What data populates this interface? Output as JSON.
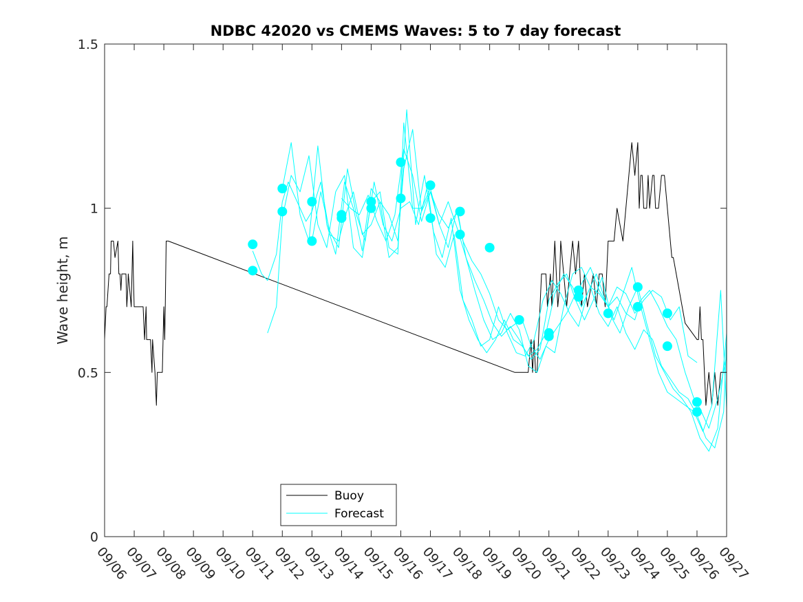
{
  "chart_data": {
    "type": "line",
    "title": "NDBC 42020 vs CMEMS Waves: 5 to 7 day forecast",
    "xlabel": "",
    "ylabel": "Wave height, m",
    "ylim": [
      0,
      1.5
    ],
    "yticks": [
      0,
      0.5,
      1,
      1.5
    ],
    "ytick_labels": [
      "0",
      "0.5",
      "1",
      "1.5"
    ],
    "xlim": [
      0,
      21
    ],
    "xtick_labels": [
      "09/06",
      "09/07",
      "09/08",
      "09/09",
      "09/10",
      "09/11",
      "09/12",
      "09/13",
      "09/14",
      "09/15",
      "09/16",
      "09/17",
      "09/18",
      "09/19",
      "09/20",
      "09/21",
      "09/22",
      "09/23",
      "09/24",
      "09/25",
      "09/26",
      "09/27"
    ],
    "colors": {
      "buoy": "#000000",
      "forecast": "#00ffff"
    },
    "legend": {
      "position": "bottom-center",
      "entries": [
        "Buoy",
        "Forecast"
      ]
    },
    "series": [
      {
        "name": "Buoy",
        "x": [
          0,
          0.05,
          0.08,
          0.15,
          0.2,
          0.22,
          0.3,
          0.35,
          0.45,
          0.48,
          0.5,
          0.52,
          0.55,
          0.58,
          0.65,
          0.72,
          0.75,
          0.78,
          0.8,
          0.9,
          0.95,
          0.97,
          1.0,
          1.02,
          1.1,
          1.15,
          1.2,
          1.3,
          1.35,
          1.4,
          1.42,
          1.45,
          1.55,
          1.6,
          1.62,
          1.7,
          1.75,
          1.78,
          1.8,
          1.85,
          1.9,
          1.95,
          2.0,
          2.03,
          2.05,
          2.08,
          2.1,
          2.15,
          13.85,
          14.3,
          14.35,
          14.4,
          14.45,
          14.5,
          14.55,
          14.6,
          14.7,
          14.75,
          14.85,
          14.9,
          14.95,
          15.05,
          15.1,
          15.2,
          15.25,
          15.3,
          15.35,
          15.4,
          15.5,
          15.6,
          15.7,
          15.8,
          15.9,
          16.0,
          16.1,
          16.2,
          16.3,
          16.4,
          16.5,
          16.6,
          16.7,
          16.8,
          16.9,
          17.0,
          17.1,
          17.15,
          17.2,
          17.3,
          17.5,
          17.7,
          17.8,
          17.9,
          18.0,
          18.05,
          18.1,
          18.15,
          18.2,
          18.3,
          18.35,
          18.4,
          18.5,
          18.55,
          18.6,
          18.7,
          18.8,
          18.9,
          19.1,
          19.15,
          19.2,
          19.3,
          19.4,
          19.5,
          19.6,
          20.0,
          20.05,
          20.1,
          20.15,
          20.2,
          20.3,
          20.4,
          20.5,
          20.6,
          20.7,
          20.8,
          20.9,
          21.0
        ],
        "y": [
          0.6,
          0.7,
          0.7,
          0.8,
          0.8,
          0.9,
          0.9,
          0.85,
          0.9,
          0.8,
          0.8,
          0.8,
          0.75,
          0.8,
          0.8,
          0.8,
          0.7,
          0.75,
          0.8,
          0.7,
          0.9,
          0.8,
          0.7,
          0.7,
          0.7,
          0.7,
          0.7,
          0.7,
          0.6,
          0.7,
          0.6,
          0.6,
          0.6,
          0.5,
          0.6,
          0.5,
          0.4,
          0.5,
          0.5,
          0.5,
          0.5,
          0.5,
          0.7,
          0.6,
          0.7,
          0.9,
          0.9,
          0.9,
          0.5,
          0.5,
          0.55,
          0.6,
          0.5,
          0.6,
          0.5,
          0.5,
          0.7,
          0.8,
          0.8,
          0.8,
          0.7,
          0.8,
          0.7,
          0.9,
          0.8,
          0.7,
          0.75,
          0.9,
          0.8,
          0.7,
          0.8,
          0.9,
          0.8,
          0.9,
          0.7,
          0.8,
          0.7,
          0.75,
          0.8,
          0.7,
          0.8,
          0.8,
          0.7,
          0.9,
          0.9,
          0.9,
          0.9,
          1.0,
          0.9,
          1.1,
          1.2,
          1.1,
          1.2,
          1.0,
          1.1,
          1.1,
          1.0,
          1.0,
          1.1,
          1.0,
          1.1,
          1.1,
          1.0,
          1.0,
          1.1,
          1.1,
          0.9,
          0.85,
          0.85,
          0.8,
          0.75,
          0.7,
          0.65,
          0.6,
          0.6,
          0.7,
          0.6,
          0.6,
          0.4,
          0.5,
          0.4,
          0.5,
          0.4,
          0.5,
          0.5,
          0.5
        ]
      },
      {
        "name": "Forecast",
        "x": [
          5.0,
          5.3,
          5.5,
          5.8,
          6.0,
          6.2,
          6.5,
          6.8,
          7.0,
          7.3,
          7.6,
          7.9,
          8.1,
          8.4,
          8.7,
          9.0,
          9.3,
          9.6,
          9.9,
          10.1,
          10.4,
          10.7,
          11.0,
          11.3,
          11.6,
          11.9,
          12.1,
          12.4,
          12.7,
          13.0,
          13.3,
          13.6,
          13.9,
          14.1,
          14.4,
          14.7,
          15.0,
          15.3,
          15.6,
          15.9,
          16.1,
          16.4,
          16.7,
          17.0,
          17.3,
          17.6,
          17.9,
          18.1,
          18.4,
          18.7,
          19.0,
          19.3,
          19.6,
          19.9,
          20.1,
          20.4,
          20.7,
          21.0
        ],
        "y": [
          0.87,
          0.8,
          0.78,
          0.86,
          1.02,
          1.08,
          1.02,
          0.96,
          0.99,
          1.08,
          0.92,
          0.9,
          0.97,
          1.05,
          0.92,
          0.95,
          1.02,
          0.98,
          0.9,
          1.12,
          1.24,
          0.99,
          1.05,
          0.98,
          0.94,
          0.99,
          0.9,
          0.84,
          0.8,
          0.74,
          0.66,
          0.63,
          0.65,
          0.66,
          0.58,
          0.54,
          0.6,
          0.64,
          0.68,
          0.74,
          0.77,
          0.82,
          0.75,
          0.7,
          0.73,
          0.68,
          0.66,
          0.72,
          0.75,
          0.7,
          0.64,
          0.6,
          0.5,
          0.42,
          0.39,
          0.33,
          0.42,
          0.55
        ]
      },
      {
        "name": "Forecast",
        "x": [
          5.5,
          5.8,
          6.0,
          6.3,
          6.6,
          6.9,
          7.2,
          7.5,
          7.8,
          8.1,
          8.4,
          8.7,
          9.0,
          9.3,
          9.6,
          9.9,
          10.1,
          10.4,
          10.7,
          11.0,
          11.3,
          11.6,
          11.9,
          12.2,
          12.5,
          12.8,
          13.1,
          13.4,
          13.7,
          14.0,
          14.3,
          14.6,
          14.9,
          15.2,
          15.5,
          15.8,
          16.1,
          16.4,
          16.7,
          17.0,
          17.3,
          17.6,
          17.9,
          18.2,
          18.5,
          18.8,
          19.1,
          19.4,
          19.7,
          20.0,
          20.3,
          20.6,
          20.9,
          21.0
        ],
        "y": [
          0.62,
          0.7,
          0.97,
          1.1,
          1.05,
          1.16,
          0.95,
          0.88,
          1.05,
          1.1,
          0.88,
          0.85,
          1.02,
          1.05,
          0.88,
          0.86,
          1.26,
          1.0,
          1.0,
          1.06,
          0.95,
          0.88,
          1.0,
          0.85,
          0.75,
          0.66,
          0.6,
          0.62,
          0.68,
          0.63,
          0.52,
          0.5,
          0.58,
          0.56,
          0.7,
          0.8,
          0.82,
          0.76,
          0.68,
          0.64,
          0.7,
          0.62,
          0.57,
          0.63,
          0.6,
          0.52,
          0.48,
          0.44,
          0.42,
          0.37,
          0.3,
          0.27,
          0.38,
          0.6
        ]
      },
      {
        "name": "Forecast",
        "x": [
          6.0,
          6.3,
          6.6,
          6.9,
          7.2,
          7.5,
          7.8,
          8.1,
          8.4,
          8.7,
          9.0,
          9.3,
          9.6,
          9.9,
          10.2,
          10.5,
          10.8,
          11.1,
          11.4,
          11.7,
          12.0,
          12.3,
          12.6,
          12.9,
          13.2,
          13.5,
          13.8,
          14.1,
          14.4,
          14.7,
          15.0,
          15.3,
          15.6,
          15.9,
          16.2,
          16.5,
          16.8,
          17.1,
          17.4,
          17.7,
          18.0,
          18.3,
          18.6,
          18.9,
          19.2,
          19.5,
          19.8,
          20.1,
          20.4,
          20.7,
          21.0
        ],
        "y": [
          1.06,
          1.2,
          0.98,
          0.9,
          1.19,
          0.95,
          0.86,
          1.08,
          1.0,
          0.87,
          1.06,
          1.02,
          0.85,
          0.88,
          1.3,
          0.95,
          1.1,
          0.93,
          0.85,
          0.97,
          0.75,
          0.66,
          0.6,
          0.56,
          0.6,
          0.66,
          0.6,
          0.58,
          0.54,
          0.57,
          0.72,
          0.77,
          0.8,
          0.72,
          0.66,
          0.72,
          0.79,
          0.67,
          0.62,
          0.7,
          0.76,
          0.65,
          0.55,
          0.5,
          0.45,
          0.42,
          0.38,
          0.3,
          0.26,
          0.33,
          0.62
        ]
      },
      {
        "name": "Forecast",
        "x": [
          7.0,
          7.3,
          7.6,
          7.9,
          8.2,
          8.5,
          8.8,
          9.1,
          9.4,
          9.7,
          10.0,
          10.3,
          10.6,
          10.9,
          11.2,
          11.5,
          11.8,
          12.1,
          12.4,
          12.7,
          13.0,
          13.3,
          13.6,
          13.9,
          14.2,
          14.5,
          14.8,
          15.1,
          15.4,
          15.7,
          16.0,
          16.3,
          16.6,
          16.9,
          17.2,
          17.5,
          17.8,
          18.1,
          18.4,
          18.7,
          19.0,
          19.3,
          19.6,
          19.9,
          20.2,
          20.5,
          20.8,
          21.0
        ],
        "y": [
          0.9,
          1.05,
          0.93,
          0.88,
          1.12,
          0.98,
          0.9,
          1.08,
          0.95,
          0.9,
          1.0,
          1.02,
          0.95,
          1.07,
          0.86,
          0.82,
          0.92,
          0.72,
          0.66,
          0.58,
          0.6,
          0.7,
          0.62,
          0.56,
          0.55,
          0.6,
          0.72,
          0.78,
          0.74,
          0.68,
          0.64,
          0.74,
          0.8,
          0.72,
          0.66,
          0.74,
          0.82,
          0.7,
          0.6,
          0.5,
          0.44,
          0.42,
          0.4,
          0.38,
          0.32,
          0.4,
          0.75,
          0.39
        ]
      },
      {
        "name": "Forecast",
        "x": [
          8.0,
          8.3,
          8.6,
          8.9,
          9.2,
          9.5,
          9.8,
          10.1,
          10.4,
          10.7,
          11.0,
          11.3,
          11.6,
          11.9,
          12.2,
          12.5,
          12.8,
          13.1,
          13.4,
          13.7,
          14.0,
          14.3,
          14.6,
          14.9,
          15.2,
          15.5,
          15.8,
          16.1,
          16.4,
          16.7,
          17.0,
          17.3,
          17.6,
          17.9,
          18.2,
          18.5,
          18.8,
          19.1,
          19.4,
          19.7,
          20.0
        ],
        "y": [
          1.03,
          1.0,
          0.98,
          1.04,
          0.96,
          0.9,
          0.98,
          1.18,
          1.1,
          0.96,
          1.05,
          0.95,
          1.02,
          0.94,
          0.85,
          0.78,
          0.72,
          0.65,
          0.61,
          0.64,
          0.6,
          0.55,
          0.57,
          0.62,
          0.74,
          0.8,
          0.76,
          0.7,
          0.76,
          0.74,
          0.7,
          0.76,
          0.74,
          0.68,
          0.72,
          0.75,
          0.73,
          0.66,
          0.7,
          0.55,
          0.53
        ]
      }
    ],
    "forecast_markers": {
      "x": [
        5.0,
        5.0,
        6.0,
        6.0,
        7.0,
        7.0,
        8.0,
        8.0,
        9.0,
        9.0,
        10.0,
        10.0,
        11.0,
        11.0,
        12.0,
        12.0,
        13.0,
        14.0,
        15.0,
        15.0,
        16.0,
        16.0,
        17.0,
        18.0,
        18.0,
        19.0,
        19.0,
        20.0,
        20.0
      ],
      "y": [
        0.89,
        0.81,
        1.06,
        0.99,
        1.02,
        0.9,
        0.98,
        0.97,
        1.02,
        1.0,
        1.14,
        1.03,
        1.07,
        0.97,
        0.99,
        0.92,
        0.88,
        0.66,
        0.62,
        0.61,
        0.75,
        0.73,
        0.68,
        0.76,
        0.7,
        0.68,
        0.58,
        0.41,
        0.38
      ]
    }
  }
}
